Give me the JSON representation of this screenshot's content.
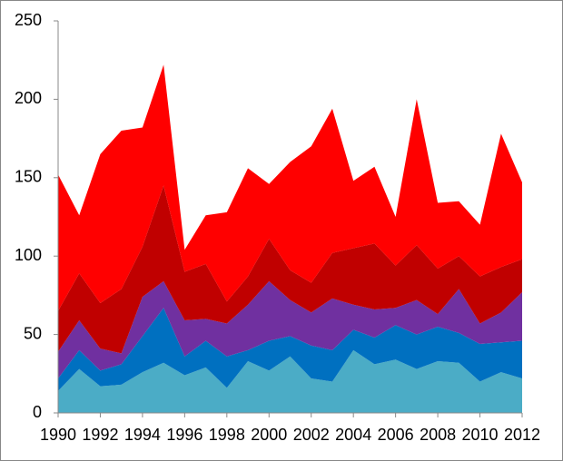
{
  "chart_data": {
    "type": "area",
    "stacked": true,
    "x": [
      1990,
      1991,
      1992,
      1993,
      1994,
      1995,
      1996,
      1997,
      1998,
      1999,
      2000,
      2001,
      2002,
      2003,
      2004,
      2005,
      2006,
      2007,
      2008,
      2009,
      2010,
      2011,
      2012
    ],
    "xlim": [
      1990,
      2012
    ],
    "xticks": [
      1990,
      1992,
      1994,
      1996,
      1998,
      2000,
      2002,
      2004,
      2006,
      2008,
      2010,
      2012
    ],
    "ylim": [
      0,
      250
    ],
    "yticks": [
      0,
      50,
      100,
      150,
      200,
      250
    ],
    "grid": false,
    "series": [
      {
        "color": "#4bacc6",
        "values": [
          14,
          28,
          17,
          18,
          26,
          32,
          24,
          29,
          16,
          33,
          27,
          36,
          22,
          20,
          40,
          31,
          34,
          28,
          33,
          32,
          20,
          26,
          22
        ]
      },
      {
        "color": "#0070c0",
        "values": [
          8,
          12,
          10,
          13,
          23,
          35,
          12,
          17,
          20,
          7,
          19,
          13,
          21,
          20,
          13,
          17,
          22,
          22,
          22,
          19,
          24,
          19,
          24
        ]
      },
      {
        "color": "#7030a0",
        "values": [
          17,
          19,
          14,
          7,
          25,
          17,
          23,
          14,
          21,
          29,
          38,
          23,
          21,
          33,
          16,
          18,
          11,
          22,
          8,
          28,
          13,
          19,
          31
        ]
      },
      {
        "color": "#c00000",
        "values": [
          26,
          30,
          29,
          41,
          32,
          61,
          31,
          35,
          14,
          18,
          27,
          19,
          19,
          29,
          36,
          42,
          27,
          35,
          29,
          21,
          30,
          29,
          21
        ]
      },
      {
        "color": "#ff0000",
        "values": [
          87,
          37,
          95,
          101,
          76,
          77,
          14,
          31,
          57,
          69,
          35,
          69,
          87,
          92,
          43,
          49,
          31,
          93,
          42,
          35,
          33,
          85,
          49
        ]
      }
    ]
  }
}
